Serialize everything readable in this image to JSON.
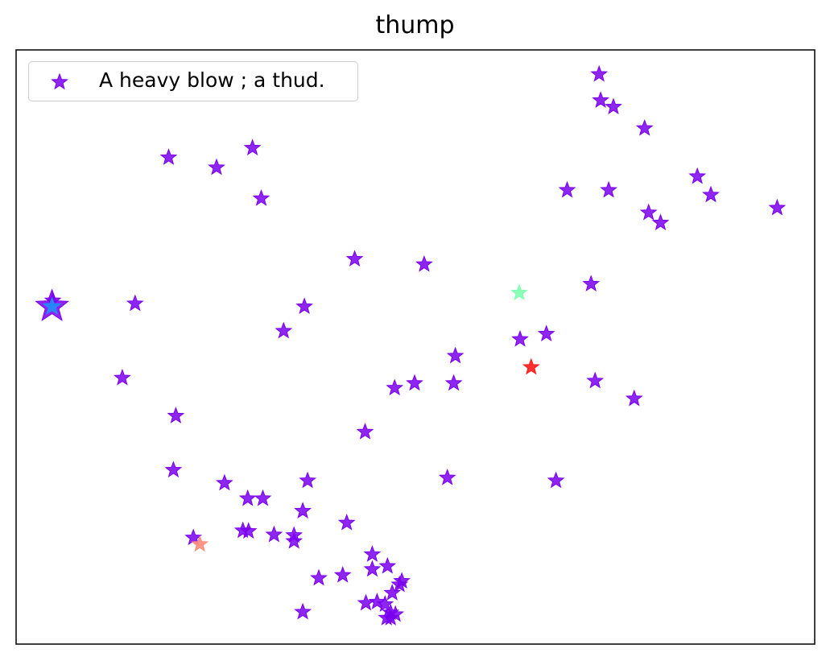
{
  "chart_data": {
    "type": "scatter",
    "title": "thump",
    "xlabel": "",
    "ylabel": "",
    "xlim": [
      0,
      100
    ],
    "ylim": [
      0,
      100
    ],
    "grid": false,
    "axis_ticks": false,
    "legend": {
      "placement": "top-left",
      "entries": [
        "A heavy blow ; a thud."
      ]
    },
    "marker": "star",
    "series": [
      {
        "name": "A heavy blow ; a thud.",
        "color": "#7a00f0",
        "points": [
          [
            73.0,
            95.9
          ],
          [
            73.2,
            91.5
          ],
          [
            74.8,
            90.4
          ],
          [
            78.7,
            86.8
          ],
          [
            19.1,
            81.9
          ],
          [
            29.6,
            83.5
          ],
          [
            25.1,
            80.2
          ],
          [
            30.7,
            75.0
          ],
          [
            69.0,
            76.4
          ],
          [
            74.2,
            76.4
          ],
          [
            85.3,
            78.7
          ],
          [
            87.0,
            75.6
          ],
          [
            79.2,
            72.6
          ],
          [
            80.7,
            70.9
          ],
          [
            95.3,
            73.4
          ],
          [
            42.4,
            64.8
          ],
          [
            51.1,
            63.9
          ],
          [
            72.0,
            60.6
          ],
          [
            4.6,
            57.8
          ],
          [
            14.9,
            57.3
          ],
          [
            36.1,
            56.8
          ],
          [
            33.5,
            52.7
          ],
          [
            63.1,
            51.3
          ],
          [
            66.4,
            52.2
          ],
          [
            55.0,
            48.5
          ],
          [
            13.3,
            44.8
          ],
          [
            47.4,
            43.1
          ],
          [
            49.9,
            43.9
          ],
          [
            54.8,
            43.9
          ],
          [
            72.5,
            44.3
          ],
          [
            77.4,
            41.3
          ],
          [
            20.0,
            38.4
          ],
          [
            43.7,
            35.7
          ],
          [
            19.7,
            29.3
          ],
          [
            26.1,
            27.1
          ],
          [
            36.5,
            27.5
          ],
          [
            54.0,
            28.0
          ],
          [
            67.6,
            27.5
          ],
          [
            29.0,
            24.5
          ],
          [
            30.9,
            24.5
          ],
          [
            35.9,
            22.4
          ],
          [
            41.4,
            20.4
          ],
          [
            28.4,
            19.1
          ],
          [
            29.1,
            19.0
          ],
          [
            32.3,
            18.4
          ],
          [
            34.8,
            18.3
          ],
          [
            34.8,
            17.3
          ],
          [
            22.2,
            17.9
          ],
          [
            44.6,
            15.1
          ],
          [
            44.6,
            12.6
          ],
          [
            46.5,
            13.1
          ],
          [
            40.9,
            11.6
          ],
          [
            37.9,
            11.1
          ],
          [
            48.3,
            10.6
          ],
          [
            48.0,
            10.0
          ],
          [
            47.1,
            8.6
          ],
          [
            45.2,
            7.1
          ],
          [
            43.8,
            6.9
          ],
          [
            46.2,
            6.7
          ],
          [
            46.9,
            5.3
          ],
          [
            35.9,
            5.4
          ],
          [
            46.9,
            4.4
          ],
          [
            46.4,
            4.4
          ],
          [
            47.5,
            5.0
          ]
        ]
      }
    ],
    "highlights": [
      {
        "x": 4.5,
        "y": 56.8,
        "color": "#1e90ff",
        "size": "large"
      },
      {
        "x": 63.0,
        "y": 59.1,
        "color": "#7fffb0",
        "size": "normal"
      },
      {
        "x": 64.5,
        "y": 46.6,
        "color": "#ff1a1a",
        "size": "normal"
      },
      {
        "x": 23.0,
        "y": 16.8,
        "color": "#ff8c7a",
        "size": "normal"
      }
    ]
  }
}
